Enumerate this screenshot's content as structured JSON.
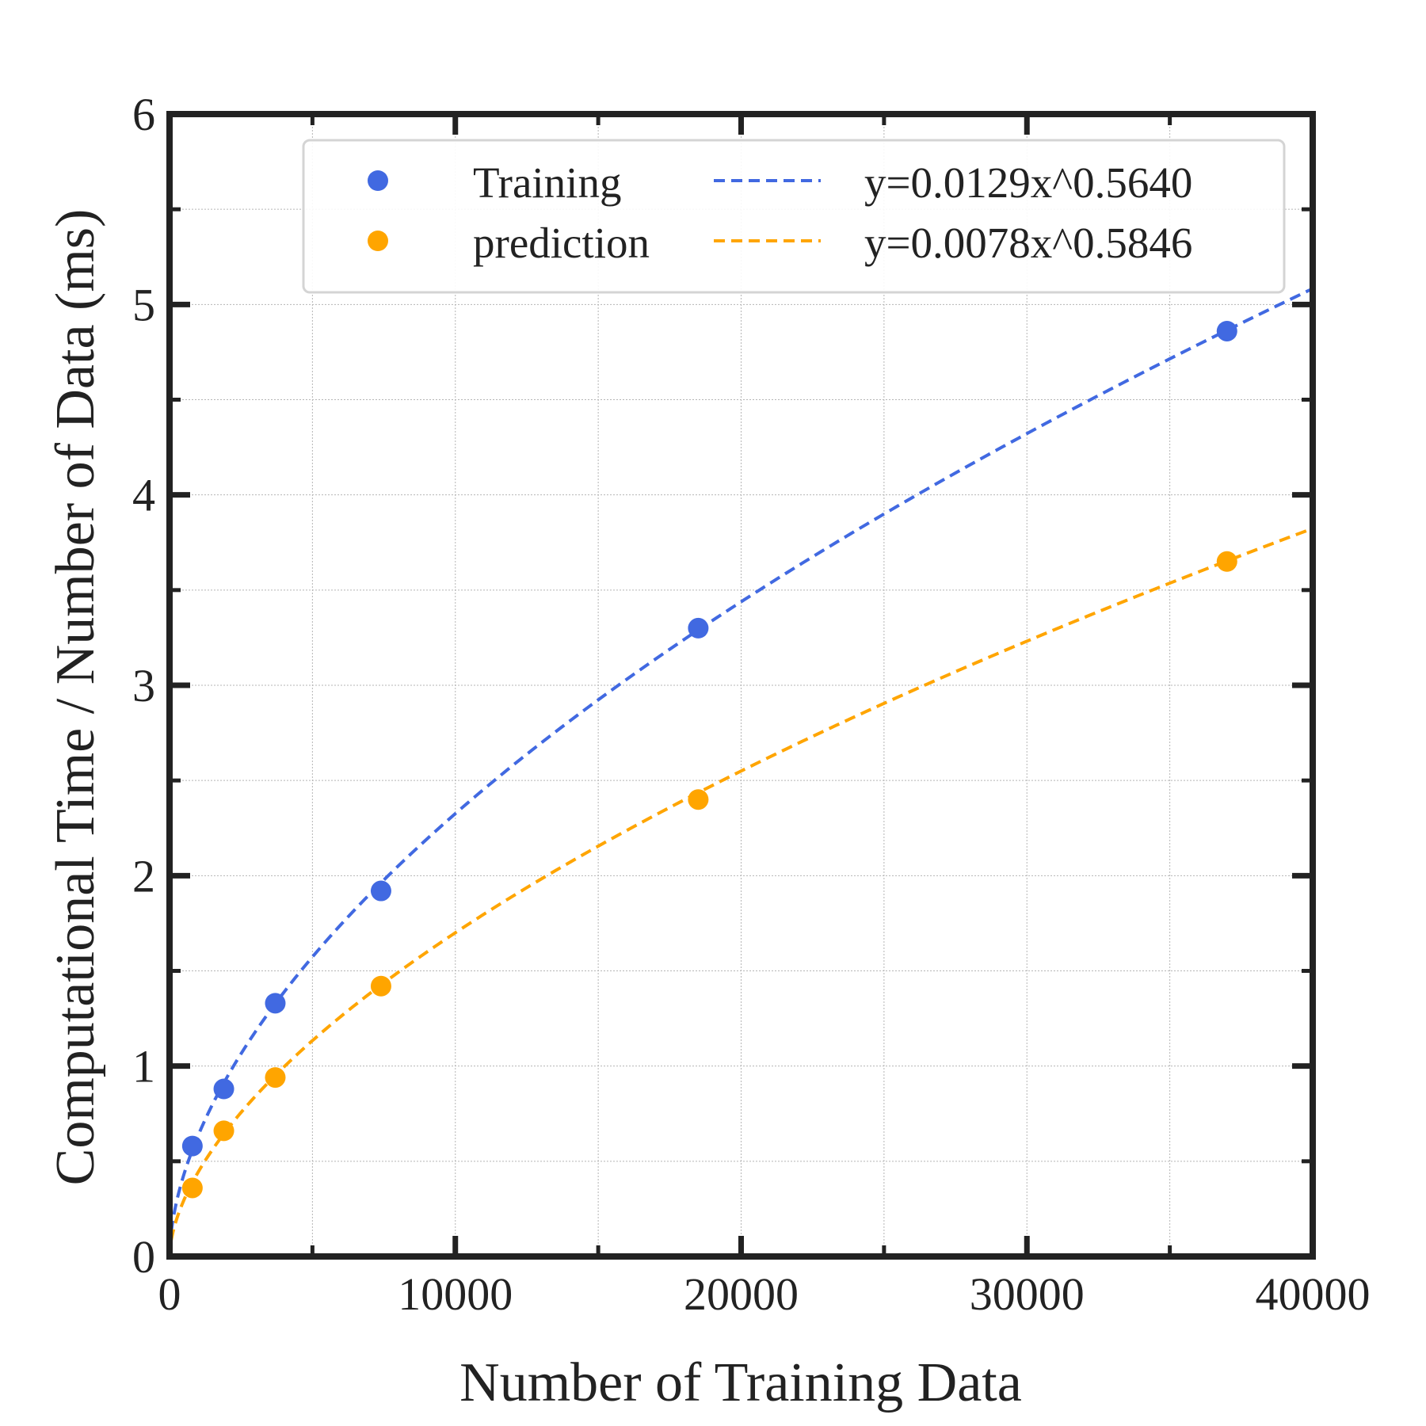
{
  "chart_data": {
    "type": "scatter",
    "xlabel": "Number of Training Data",
    "ylabel": "Computational Time / Number of Data (ms)",
    "xlim": [
      0,
      40000
    ],
    "ylim": [
      0,
      6
    ],
    "x_ticks": [
      0,
      10000,
      20000,
      30000,
      40000
    ],
    "x_tick_labels": [
      "0",
      "10000",
      "20000",
      "30000",
      "40000"
    ],
    "x_minor_ticks": [
      5000,
      15000,
      25000,
      35000
    ],
    "y_ticks": [
      0,
      1,
      2,
      3,
      4,
      5,
      6
    ],
    "y_tick_labels": [
      "0",
      "1",
      "2",
      "3",
      "4",
      "5",
      "6"
    ],
    "y_minor_ticks": [
      0.5,
      1.5,
      2.5,
      3.5,
      4.5,
      5.5
    ],
    "grid": true,
    "legend_position": "top-right",
    "series": [
      {
        "name": "Training",
        "kind": "points",
        "color": "#4169E1",
        "x": [
          800,
          1900,
          3700,
          7400,
          18500,
          37000
        ],
        "y": [
          0.58,
          0.88,
          1.33,
          1.92,
          3.3,
          4.86
        ]
      },
      {
        "name": "prediction",
        "kind": "points",
        "color": "#FFA500",
        "x": [
          800,
          1900,
          3700,
          7400,
          18500,
          37000
        ],
        "y": [
          0.36,
          0.66,
          0.94,
          1.42,
          2.4,
          3.65
        ]
      },
      {
        "name": "y=0.0129x^0.5640",
        "kind": "fit",
        "color": "#4169E1",
        "coef": 0.0129,
        "exponent": 0.564
      },
      {
        "name": "y=0.0078x^0.5846",
        "kind": "fit",
        "color": "#FFA500",
        "coef": 0.0078,
        "exponent": 0.5846
      }
    ]
  }
}
